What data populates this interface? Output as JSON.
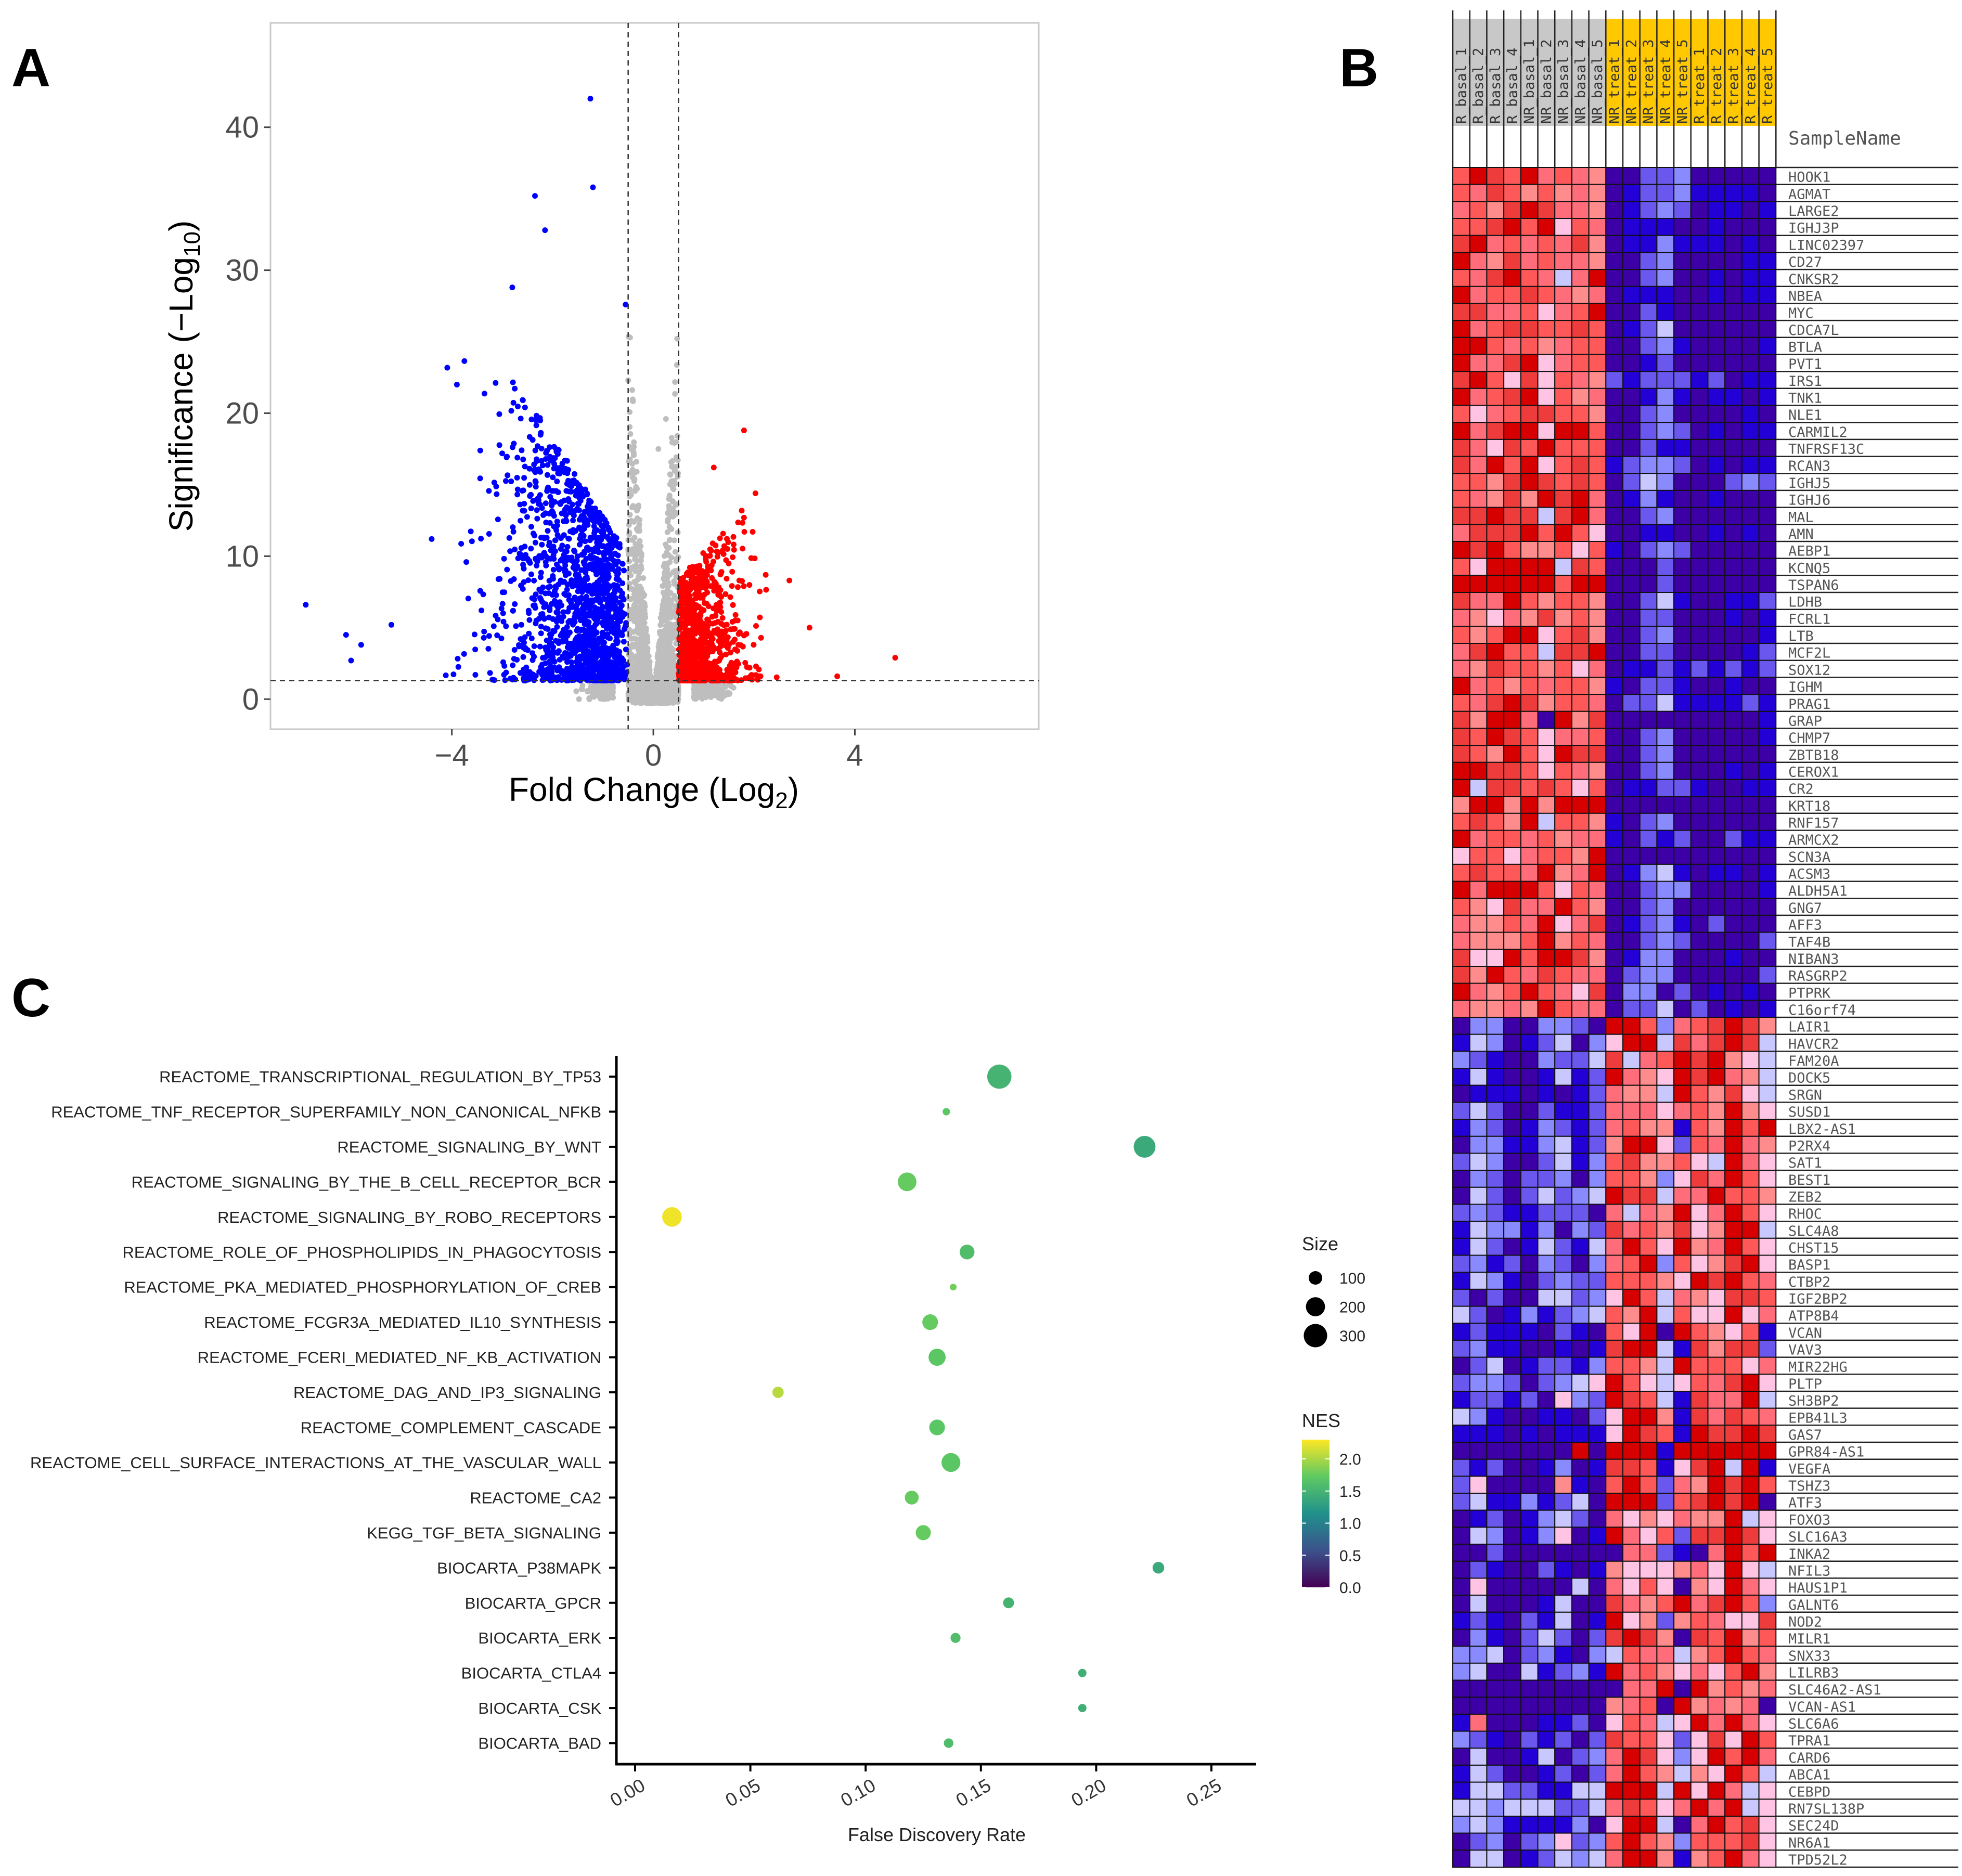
{
  "panels": {
    "a": "A",
    "b": "B",
    "c": "C"
  },
  "chart_data": [
    {
      "type": "scatter",
      "name": "volcano",
      "xlabel": "Fold Change (Log",
      "xlabel_sub": "2",
      "xlabel_end": ")",
      "ylabel": "Significance (−Log",
      "ylabel_sub": "10",
      "ylabel_end": ")",
      "xlim": [
        -7.6,
        7.65
      ],
      "ylim": [
        -2.1,
        47.3
      ],
      "xticks": [
        "−4",
        "0",
        "4"
      ],
      "xtick_values": [
        -4,
        0,
        4
      ],
      "yticks": [
        "0",
        "10",
        "20",
        "30",
        "40"
      ],
      "ytick_values": [
        0,
        10,
        20,
        30,
        40
      ],
      "fc_threshold": 0.5,
      "sig_threshold": 1.3,
      "colors": {
        "down": "#0000ff",
        "up": "#ff0000",
        "ns": "#bebebe"
      },
      "counts": {
        "down": 1500,
        "up": 950,
        "ns": 2600
      },
      "notable_points": [
        {
          "x": -1.25,
          "y": 42.0,
          "group": "down"
        },
        {
          "x": -1.2,
          "y": 35.8,
          "group": "down"
        },
        {
          "x": -2.35,
          "y": 35.2,
          "group": "down"
        },
        {
          "x": -2.15,
          "y": 32.8,
          "group": "down"
        },
        {
          "x": -6.9,
          "y": 6.6,
          "group": "down"
        },
        {
          "x": -6.1,
          "y": 4.5,
          "group": "down"
        },
        {
          "x": -5.2,
          "y": 5.2,
          "group": "down"
        },
        {
          "x": -5.8,
          "y": 3.8,
          "group": "down"
        },
        {
          "x": -6.0,
          "y": 2.7,
          "group": "down"
        },
        {
          "x": -4.4,
          "y": 11.2,
          "group": "down"
        },
        {
          "x": -3.9,
          "y": 22.0,
          "group": "down"
        },
        {
          "x": -2.8,
          "y": 28.8,
          "group": "down"
        },
        {
          "x": -0.55,
          "y": 27.6,
          "group": "down"
        },
        {
          "x": 1.8,
          "y": 18.8,
          "group": "up"
        },
        {
          "x": 1.2,
          "y": 16.2,
          "group": "up"
        },
        {
          "x": 4.8,
          "y": 2.9,
          "group": "up"
        },
        {
          "x": 3.65,
          "y": 1.6,
          "group": "up"
        },
        {
          "x": 2.7,
          "y": 8.3,
          "group": "up"
        },
        {
          "x": 3.1,
          "y": 5.0,
          "group": "up"
        },
        {
          "x": 0.25,
          "y": 19.6,
          "group": "ns"
        },
        {
          "x": 0.1,
          "y": 17.5,
          "group": "ns"
        }
      ]
    },
    {
      "type": "heatmap",
      "name": "expression-heatmap",
      "annotation_label": "SampleName",
      "samples": [
        "R_basal_1",
        "R_basal_2",
        "R_basal_3",
        "R_basal_4",
        "NR_basal_1",
        "NR_basal_2",
        "NR_basal_3",
        "NR_basal_4",
        "NR_basal_5",
        "NR_treat_1",
        "NR_treat_2",
        "NR_treat_3",
        "NR_treat_4",
        "NR_treat_5",
        "R_treat_1",
        "R_treat_2",
        "R_treat_3",
        "R_treat_4",
        "R_treat_5"
      ],
      "sample_group_colors": {
        "basal": "#c8c8c8",
        "treat": "#ffc800"
      },
      "genes": [
        "HOOK1",
        "AGMAT",
        "LARGE2",
        "IGHJ3P",
        "LINC02397",
        "CD27",
        "CNKSR2",
        "NBEA",
        "MYC",
        "CDCA7L",
        "BTLA",
        "PVT1",
        "IRS1",
        "TNK1",
        "NLE1",
        "CARMIL2",
        "TNFRSF13C",
        "RCAN3",
        "IGHJ5",
        "IGHJ6",
        "MAL",
        "AMN",
        "AEBP1",
        "KCNQ5",
        "TSPAN6",
        "LDHB",
        "FCRL1",
        "LTB",
        "MCF2L",
        "SOX12",
        "IGHM",
        "PRAG1",
        "GRAP",
        "CHMP7",
        "ZBTB18",
        "CEROX1",
        "CR2",
        "KRT18",
        "RNF157",
        "ARMCX2",
        "SCN3A",
        "ACSM3",
        "ALDH5A1",
        "GNG7",
        "AFF3",
        "TAF4B",
        "NIBAN3",
        "RASGRP2",
        "PTPRK",
        "C16orf74",
        "LAIR1",
        "HAVCR2",
        "FAM20A",
        "DOCK5",
        "SRGN",
        "SUSD1",
        "LBX2-AS1",
        "P2RX4",
        "SAT1",
        "BEST1",
        "ZEB2",
        "RHOC",
        "SLC4A8",
        "CHST15",
        "BASP1",
        "CTBP2",
        "IGF2BP2",
        "ATP8B4",
        "VCAN",
        "VAV3",
        "MIR22HG",
        "PLTP",
        "SH3BP2",
        "EPB41L3",
        "GAS7",
        "GPR84-AS1",
        "VEGFA",
        "TSHZ3",
        "ATF3",
        "FOXO3",
        "SLC16A3",
        "INKA2",
        "NFIL3",
        "HAUS1P1",
        "GALNT6",
        "NOD2",
        "MILR1",
        "SNX33",
        "LILRB3",
        "SLC46A2-AS1",
        "VCAN-AS1",
        "SLC6A6",
        "TPRA1",
        "CARD6",
        "ABCA1",
        "CEBPD",
        "RN7SL138P",
        "SEC24D",
        "NR6A1",
        "TPD52L2"
      ],
      "level_scale": "0=lowest (dark purple) ... A=highest (dark red)",
      "level_colors": [
        "#3d00a6",
        "#2300d6",
        "#6a58ee",
        "#8a8aff",
        "#c8c8ff",
        "#ffc4e4",
        "#ff8c8c",
        "#ff6c7a",
        "#ff5858",
        "#ee3c3c",
        "#d60000"
      ],
      "levels": [
        "8A98A78760022300000",
        "8798686760122311110",
        "7869A97760123201101",
        "889A8A5870111001000",
        "9A78787960113111010",
        "A769787760023000011",
        "879A8747A0023001011",
        "A788987670111001011",
        "99778578A0021000000",
        "A789988980124000000",
        "AA87867880023100001",
        "A779A57880012000000",
        "9A85958762122212011",
        "A789A58670013101101",
        "8578998860023000010",
        "A79AA5AA80023201011",
        "97598A8880021100000",
        "97A8A58981233201011",
        "8869A98980243000232",
        "87696A9A70131001000",
        "99A9949A70023000000",
        "7999A8A850011001010",
        "A9A8668581023200000",
        "85AAAA4980002000000",
        "AAAAAA8AA0002000000",
        "977A868860024100112",
        "7657696860022000101",
        "868AA58960023000001",
        "79A88499A0022000012",
        "7698868570112121212",
        "A786878861022100100",
        "879A968870224111121",
        "96AA70A690000000001",
        "98A9857780023000001",
        "986A85A990023000000",
        "AA99858760023000101",
        "A499898580112210011",
        "6AA6A6AAA0000000000",
        "8986A48861023000000",
        "A788786771021200211",
        "58857886A0000000000",
        "89887A67A0134101101",
        "A7AAA85870023300001",
        "865977A860023000000",
        "76687A5790123102000",
        "76668A6870023200002",
        "955A8AA960133000100",
        "96A8798770233000002",
        "A768A87590330201010",
        "76676A8770224020101",
        "033003320AA83789A96",
        "1430124035AA4979A94",
        "3210032249478A9A654",
        "141001412A765A9A764",
        "0111010127664A86954",
        "2420021127775786A65",
        "1320132127866186A8A",
        "0331134126AA5287A76",
        "2430024138966854A75",
        "0320223038863597A85",
        "042024234A99477A886",
        "2321122207476A57A85",
        "1433130329786956AA4",
        "1420142147A85A67A85",
        "23120320378A38569A5",
        "14310232288865A9A87",
        "2020044235A84765998",
        "42013123486A4855A57",
        "12111021085A0A86581",
        "2311001019AA4196992",
        "0240122138864A88857",
        "233202345A8545879A5",
        "122120532A9841977A4",
        "4310011025AA6197987",
        "1110101115A981A99A9",
        "0000000A0AAA1AAAAAA",
        "212001301998159A4A1",
        "2500006108A8276A9A8",
        "241131240AAA289A9A0",
        "0120134207565766A45",
        "043013501A758299A95",
        "0020000000772107A8A",
        "0210021016555675A54",
        "0500000407585065A75",
        "0400014009768A79A83",
        "121021401A562687559",
        "0310242029A96098A68",
        "3340231034877468A87",
        "340041231A7865758A6",
        "000000000077A0A6867",
        "0000000006780A67670",
        "17000112058745A7A75",
        "32102120298852595A8",
        "0400140237A9535A8A7",
        "1420012027A86465A84",
        "144221144AAA4A5A745",
        "44344422479857A7A45",
        "3431111305AA407A895",
        "0230235238A86388895",
        "0440124347AA6168A75"
      ]
    },
    {
      "type": "scatter",
      "name": "gsea-bubble",
      "xlabel": "False Discovery Rate",
      "xlim": [
        -0.008,
        0.262
      ],
      "xticks": [
        "0.00",
        "0.05",
        "0.10",
        "0.15",
        "0.20",
        "0.25"
      ],
      "xtick_values": [
        0,
        0.05,
        0.1,
        0.15,
        0.2,
        0.25
      ],
      "size_legend_title": "Size",
      "size_legend": [
        {
          "label": "100",
          "value": 100
        },
        {
          "label": "200",
          "value": 200
        },
        {
          "label": "300",
          "value": 300
        }
      ],
      "color_legend_title": "NES",
      "color_ticks": [
        "2.0",
        "1.5",
        "1.0",
        "0.5",
        "0.0"
      ],
      "color_tick_values": [
        2.0,
        1.5,
        1.0,
        0.5,
        0.0
      ],
      "color_range": [
        0,
        2.3
      ],
      "colormap": "viridis",
      "legend_position": "right",
      "points": [
        {
          "label": "REACTOME_TRANSCRIPTIONAL_REGULATION_BY_TP53",
          "fdr": 0.158,
          "nes": 1.5,
          "size": 320
        },
        {
          "label": "REACTOME_TNF_RECEPTOR_SUPERFAMILY_NON_CANONICAL_NFKB",
          "fdr": 0.135,
          "nes": 1.7,
          "size": 30
        },
        {
          "label": "REACTOME_SIGNALING_BY_WNT",
          "fdr": 0.221,
          "nes": 1.4,
          "size": 260
        },
        {
          "label": "REACTOME_SIGNALING_BY_THE_B_CELL_RECEPTOR_BCR",
          "fdr": 0.118,
          "nes": 1.75,
          "size": 190
        },
        {
          "label": "REACTOME_SIGNALING_BY_ROBO_RECEPTORS",
          "fdr": 0.016,
          "nes": 2.25,
          "size": 210
        },
        {
          "label": "REACTOME_ROLE_OF_PHOSPHOLIPIDS_IN_PHAGOCYTOSIS",
          "fdr": 0.144,
          "nes": 1.6,
          "size": 120
        },
        {
          "label": "REACTOME_PKA_MEDIATED_PHOSPHORYLATION_OF_CREB",
          "fdr": 0.138,
          "nes": 1.8,
          "size": 25
        },
        {
          "label": "REACTOME_FCGR3A_MEDIATED_IL10_SYNTHESIS",
          "fdr": 0.128,
          "nes": 1.75,
          "size": 135
        },
        {
          "label": "REACTOME_FCERI_MEDIATED_NF_KB_ACTIVATION",
          "fdr": 0.131,
          "nes": 1.7,
          "size": 160
        },
        {
          "label": "REACTOME_DAG_AND_IP3_SIGNALING",
          "fdr": 0.062,
          "nes": 2.05,
          "size": 70
        },
        {
          "label": "REACTOME_COMPLEMENT_CASCADE",
          "fdr": 0.131,
          "nes": 1.7,
          "size": 135
        },
        {
          "label": "REACTOME_CELL_SURFACE_INTERACTIONS_AT_THE_VASCULAR_WALL",
          "fdr": 0.137,
          "nes": 1.7,
          "size": 195
        },
        {
          "label": "REACTOME_CA2",
          "fdr": 0.12,
          "nes": 1.75,
          "size": 105
        },
        {
          "label": "KEGG_TGF_BETA_SIGNALING",
          "fdr": 0.125,
          "nes": 1.75,
          "size": 125
        },
        {
          "label": "BIOCARTA_P38MAPK",
          "fdr": 0.227,
          "nes": 1.4,
          "size": 75
        },
        {
          "label": "BIOCARTA_GPCR",
          "fdr": 0.162,
          "nes": 1.5,
          "size": 65
        },
        {
          "label": "BIOCARTA_ERK",
          "fdr": 0.139,
          "nes": 1.6,
          "size": 55
        },
        {
          "label": "BIOCARTA_CTLA4",
          "fdr": 0.194,
          "nes": 1.45,
          "size": 38
        },
        {
          "label": "BIOCARTA_CSK",
          "fdr": 0.194,
          "nes": 1.45,
          "size": 38
        },
        {
          "label": "BIOCARTA_BAD",
          "fdr": 0.136,
          "nes": 1.6,
          "size": 50
        }
      ]
    }
  ]
}
